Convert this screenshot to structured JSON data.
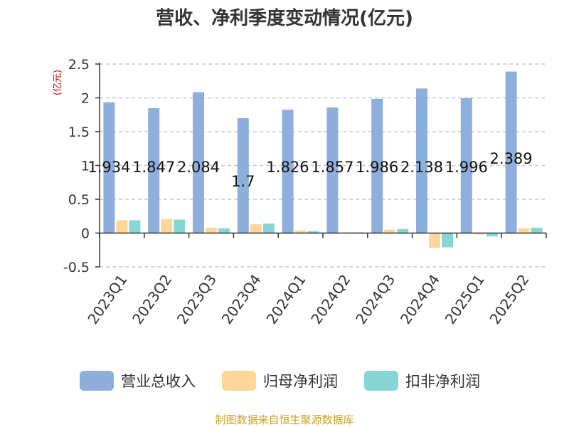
{
  "chart_data": {
    "type": "bar",
    "title": "营收、净利季度变动情况(亿元)",
    "unit_label": "(亿元)",
    "categories": [
      "2023Q1",
      "2023Q2",
      "2023Q3",
      "2023Q4",
      "2024Q1",
      "2024Q2",
      "2024Q3",
      "2024Q4",
      "2025Q1",
      "2025Q2"
    ],
    "series": [
      {
        "name": "营业总收入",
        "color": "#8eaedb",
        "values": [
          1.934,
          1.847,
          2.084,
          1.7,
          1.826,
          1.857,
          1.986,
          2.138,
          1.996,
          2.389
        ]
      },
      {
        "name": "归母净利润",
        "color": "#ffd699",
        "values": [
          0.19,
          0.21,
          0.08,
          0.13,
          0.04,
          0.01,
          0.05,
          -0.22,
          -0.02,
          0.07
        ]
      },
      {
        "name": "扣非净利润",
        "color": "#88d5d6",
        "values": [
          0.19,
          0.2,
          0.07,
          0.14,
          0.03,
          0.01,
          0.06,
          -0.21,
          -0.05,
          0.08
        ]
      }
    ],
    "data_labels": [
      "1.934",
      "1.847",
      "2.084",
      "1.7",
      "1.826",
      "1.857",
      "1.986",
      "2.138",
      "1.996",
      "2.389"
    ],
    "yticks": [
      "-0.5",
      "0",
      "0.5",
      "1",
      "1.5",
      "2",
      "2.5"
    ],
    "ylim": [
      -0.5,
      2.5
    ],
    "grid": true,
    "legend_position": "bottom",
    "source": "制图数据来自恒生聚源数据库"
  }
}
